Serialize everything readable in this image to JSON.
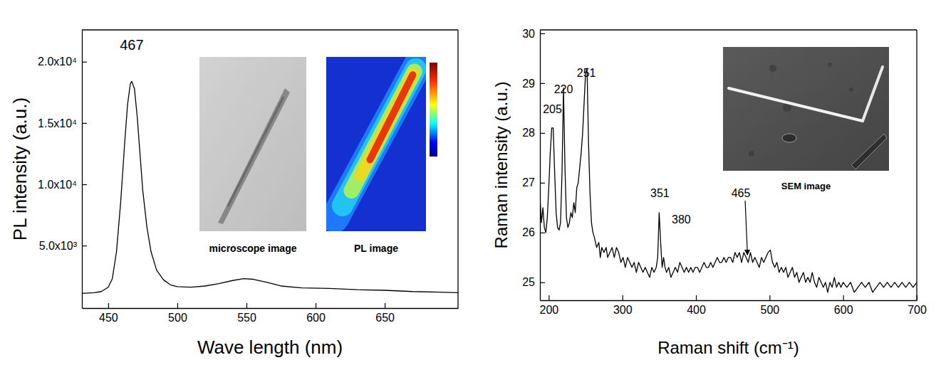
{
  "chart_data": [
    {
      "type": "line",
      "x_label": "Wave length (nm)",
      "y_label": "PL intensity (a.u.)",
      "xlim": [
        431,
        703
      ],
      "xticks": [
        450,
        500,
        550,
        600,
        650
      ],
      "ylim": [
        -100,
        22600
      ],
      "yticks": [
        {
          "value": 5000,
          "label": "5.0x10³"
        },
        {
          "value": 10000,
          "label": "1.0x10⁴"
        },
        {
          "value": 15000,
          "label": "1.5x10⁴"
        },
        {
          "value": 20000,
          "label": "2.0x10⁴"
        }
      ],
      "x": [
        431,
        440,
        445,
        450,
        453,
        456,
        459,
        462,
        464,
        466,
        467,
        469,
        471,
        473,
        475,
        478,
        481,
        485,
        490,
        495,
        500,
        510,
        520,
        530,
        540,
        548,
        555,
        565,
        575,
        590,
        610,
        630,
        650,
        670,
        690,
        703
      ],
      "series": [
        {
          "color": "#000000",
          "values": [
            1100,
            1150,
            1250,
            1600,
            2300,
            4500,
            8500,
            13500,
            16500,
            18200,
            18400,
            17800,
            15500,
            12500,
            9500,
            6500,
            4500,
            3000,
            2200,
            1800,
            1650,
            1600,
            1700,
            1900,
            2150,
            2300,
            2250,
            2000,
            1700,
            1550,
            1500,
            1400,
            1350,
            1250,
            1200,
            1150
          ]
        }
      ],
      "annotations": [
        {
          "text": "467",
          "x": 467,
          "y": 21000
        }
      ],
      "insets": [
        {
          "label": "microscope image"
        },
        {
          "label": "PL image"
        }
      ]
    },
    {
      "type": "line",
      "x_label": "Raman shift (cm⁻¹)",
      "y_label": "Raman intensity (a.u.)",
      "xlim": [
        188,
        700
      ],
      "xticks": [
        200,
        300,
        400,
        500,
        600,
        700
      ],
      "ylim": [
        24.64,
        30.07
      ],
      "yticks": [
        25,
        26,
        27,
        28,
        29,
        30
      ],
      "x": [
        188,
        190,
        192,
        194,
        196,
        198,
        200,
        202,
        204,
        206,
        208,
        210,
        212,
        214,
        216,
        218,
        220,
        222,
        224,
        226,
        228,
        230,
        232,
        234,
        236,
        238,
        240,
        242,
        244,
        246,
        248,
        250,
        252,
        254,
        256,
        258,
        260,
        262,
        265,
        268,
        270,
        272,
        275,
        278,
        280,
        283,
        286,
        289,
        292,
        295,
        298,
        301,
        304,
        307,
        310,
        313,
        316,
        319,
        322,
        325,
        328,
        331,
        334,
        337,
        340,
        343,
        346,
        348,
        350,
        352,
        354,
        356,
        358,
        360,
        363,
        366,
        369,
        372,
        375,
        378,
        381,
        384,
        387,
        390,
        393,
        396,
        399,
        402,
        405,
        408,
        411,
        414,
        417,
        420,
        423,
        426,
        429,
        432,
        435,
        438,
        441,
        444,
        447,
        450,
        453,
        456,
        459,
        462,
        465,
        468,
        471,
        474,
        477,
        480,
        483,
        486,
        489,
        492,
        495,
        498,
        501,
        504,
        507,
        510,
        513,
        516,
        519,
        522,
        525,
        528,
        531,
        534,
        537,
        540,
        543,
        546,
        549,
        552,
        555,
        558,
        561,
        564,
        567,
        570,
        573,
        576,
        579,
        582,
        585,
        588,
        591,
        594,
        597,
        600,
        605,
        610,
        615,
        620,
        625,
        630,
        635,
        640,
        645,
        650,
        655,
        660,
        665,
        670,
        675,
        680,
        685,
        690,
        695,
        700
      ],
      "series": [
        {
          "color": "#000000",
          "values": [
            26.7,
            26.2,
            26.5,
            26.1,
            26.0,
            26.3,
            26.9,
            27.6,
            28.1,
            28.1,
            27.2,
            26.4,
            26.1,
            26.05,
            26.2,
            27.2,
            28.9,
            27.3,
            26.3,
            26.1,
            26.2,
            26.4,
            26.3,
            26.6,
            26.4,
            26.9,
            27.0,
            27.3,
            27.6,
            28.0,
            28.6,
            29.2,
            29.3,
            27.8,
            26.8,
            26.2,
            26.0,
            25.9,
            25.7,
            25.8,
            25.5,
            25.7,
            25.6,
            25.7,
            25.5,
            25.6,
            25.7,
            25.5,
            25.7,
            25.6,
            25.4,
            25.5,
            25.3,
            25.5,
            25.4,
            25.3,
            25.4,
            25.2,
            25.4,
            25.3,
            25.2,
            25.3,
            25.2,
            25.1,
            25.3,
            25.2,
            25.3,
            25.5,
            26.4,
            25.8,
            25.3,
            25.5,
            25.3,
            25.2,
            25.3,
            25.1,
            25.2,
            25.3,
            25.2,
            25.4,
            25.3,
            25.2,
            25.3,
            25.2,
            25.3,
            25.2,
            25.3,
            25.3,
            25.2,
            25.3,
            25.4,
            25.3,
            25.3,
            25.4,
            25.3,
            25.4,
            25.5,
            25.4,
            25.4,
            25.5,
            25.4,
            25.5,
            25.5,
            25.4,
            25.6,
            25.5,
            25.6,
            25.4,
            25.6,
            25.5,
            25.4,
            25.6,
            25.4,
            25.5,
            25.4,
            25.3,
            25.5,
            25.4,
            25.5,
            25.6,
            25.65,
            25.4,
            25.3,
            25.4,
            25.2,
            25.3,
            25.2,
            25.3,
            25.1,
            25.2,
            25.3,
            25.1,
            25.2,
            25.0,
            25.1,
            25.2,
            25.0,
            25.1,
            25.0,
            25.2,
            25.0,
            24.9,
            25.1,
            25.0,
            24.9,
            25.0,
            24.8,
            25.0,
            24.9,
            25.1,
            24.9,
            25.0,
            24.9,
            25.0,
            24.9,
            25.0,
            24.8,
            24.9,
            25.0,
            24.9,
            25.0,
            24.8,
            24.9,
            25.0,
            24.9,
            25.0,
            24.9,
            25.0,
            24.9,
            25.0,
            24.9,
            25.0,
            24.9,
            25.0
          ]
        }
      ],
      "annotations": [
        {
          "text": "205",
          "x": 205,
          "y": 28.4
        },
        {
          "text": "220",
          "x": 220,
          "y": 28.8
        },
        {
          "text": "251",
          "x": 251,
          "y": 29.13
        },
        {
          "text": "351",
          "x": 351,
          "y": 26.71
        },
        {
          "text": "380",
          "x": 380,
          "y": 26.19
        },
        {
          "text": "465",
          "x": 461,
          "y": 26.71,
          "point": [
            470,
            25.55
          ]
        }
      ],
      "insets": [
        {
          "label": "SEM image"
        }
      ]
    }
  ]
}
